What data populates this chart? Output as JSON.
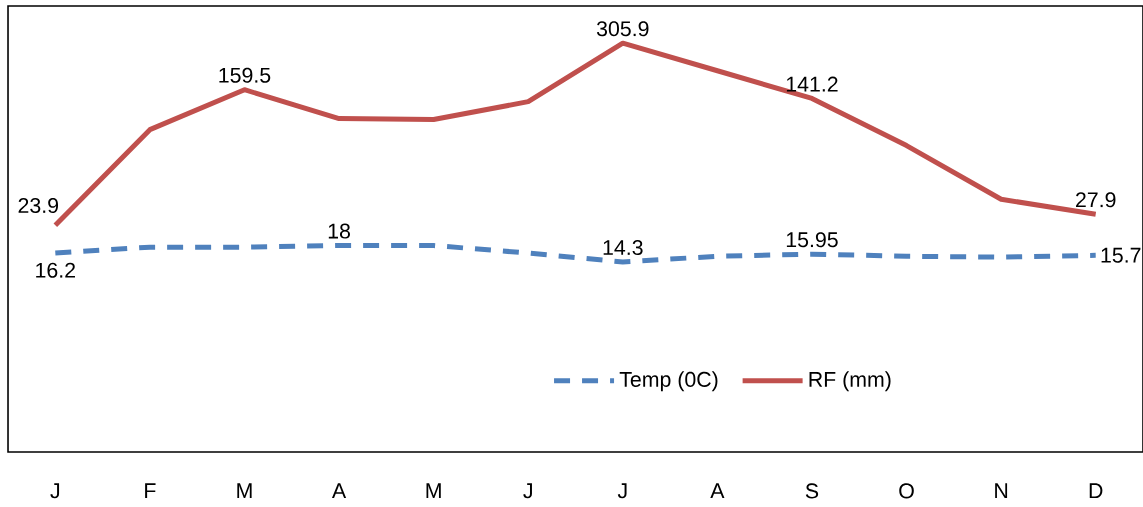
{
  "chart_data": {
    "type": "line",
    "categories": [
      "J",
      "F",
      "M",
      "A",
      "M",
      "J",
      "J",
      "A",
      "S",
      "O",
      "N",
      "D"
    ],
    "series": [
      {
        "name": "Temp (0C)",
        "color": "#4f81bd",
        "line_style": "dashed",
        "values": [
          16.2,
          17.6,
          17.6,
          18,
          18,
          16.2,
          14.3,
          15.5,
          15.95,
          15.5,
          15.3,
          15.7
        ],
        "value_labels": [
          "16.2",
          null,
          null,
          "18",
          null,
          null,
          "14.3",
          null,
          "15.95",
          null,
          null,
          "15.7"
        ]
      },
      {
        "name": "RF (mm)",
        "color": "#c0504d",
        "line_style": "solid",
        "values": [
          23.9,
          91.2,
          159.5,
          106.5,
          105,
          135,
          305.9,
          208,
          141.2,
          73,
          34.4,
          27.9
        ],
        "value_labels": [
          "23.9",
          null,
          "159.5",
          null,
          null,
          null,
          "305.9",
          null,
          "141.2",
          null,
          null,
          "27.9"
        ]
      }
    ],
    "log": true,
    "ylim": [
      1,
      515
    ],
    "tick_labels": "x",
    "grid": false,
    "legend": "bottom"
  }
}
